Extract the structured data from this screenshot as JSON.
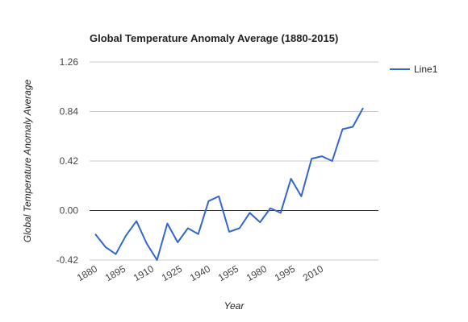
{
  "chart_data": {
    "type": "line",
    "title": "Global Temperature Anomaly Average (1880-2015)",
    "xlabel": "Year",
    "ylabel": "Global Temperature Anomaly Average",
    "yticks": [
      "1.26",
      "0.84",
      "0.42",
      "0.00",
      "-0.42"
    ],
    "ytick_values": [
      1.26,
      0.84,
      0.42,
      0.0,
      -0.42
    ],
    "xticks": [
      "1880",
      "1895",
      "1910",
      "1925",
      "1940",
      "1955",
      "1980",
      "1995",
      "2010"
    ],
    "ylim": [
      -0.42,
      1.26
    ],
    "grid": true,
    "legend_position": "right",
    "series": [
      {
        "name": "Line1",
        "color": "#3366cc",
        "values": [
          -0.2,
          -0.31,
          -0.37,
          -0.21,
          -0.09,
          -0.28,
          -0.42,
          -0.11,
          -0.27,
          -0.15,
          -0.2,
          0.08,
          0.12,
          -0.18,
          -0.15,
          -0.02,
          -0.1,
          0.02,
          -0.02,
          0.27,
          0.12,
          0.44,
          0.46,
          0.42,
          0.69,
          0.71,
          0.87
        ]
      }
    ]
  }
}
